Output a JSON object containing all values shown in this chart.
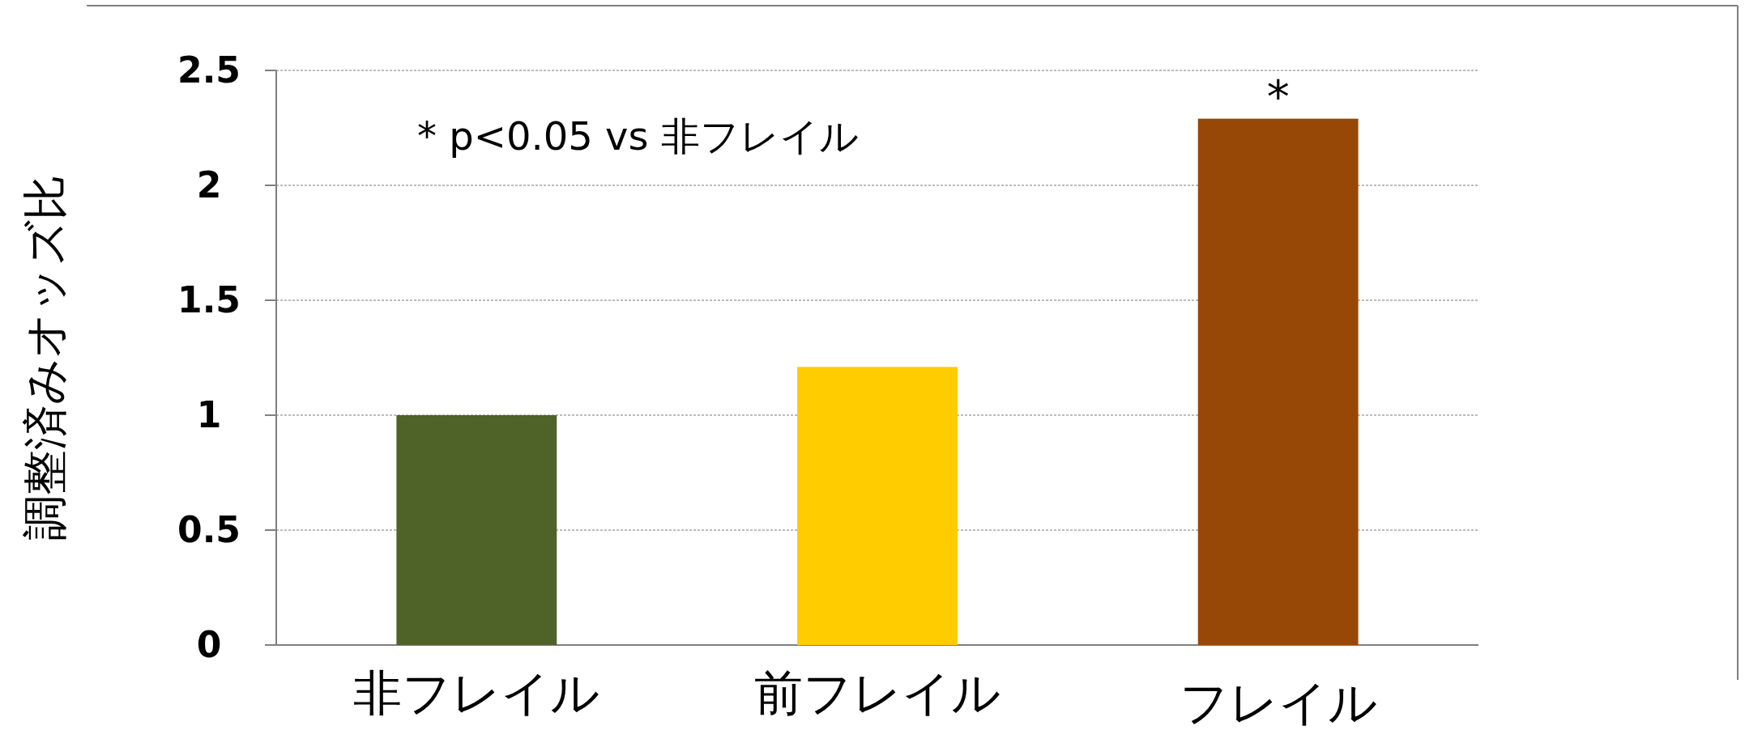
{
  "chart_data": {
    "type": "bar",
    "ylabel": "調整済みオッズ比",
    "categories": [
      "非フレイル",
      "前フレイル",
      "フレイル"
    ],
    "values": [
      1,
      1.21,
      2.29
    ],
    "colors": [
      "#4f6228",
      "#ffcc00",
      "#974806"
    ],
    "ylim": [
      0,
      2.5
    ],
    "yticks": [
      {
        "value": 0,
        "label": "0"
      },
      {
        "value": 0.5,
        "label": "0.5"
      },
      {
        "value": 1,
        "label": "1"
      },
      {
        "value": 1.5,
        "label": "1.5"
      },
      {
        "value": 2,
        "label": "2"
      },
      {
        "value": 2.5,
        "label": "2.5"
      }
    ],
    "grid": "y",
    "annotations": [
      "* p<0.05 vs 非フレイル",
      {
        "text": "*",
        "x": "フレイル",
        "y": 2.29
      }
    ]
  }
}
